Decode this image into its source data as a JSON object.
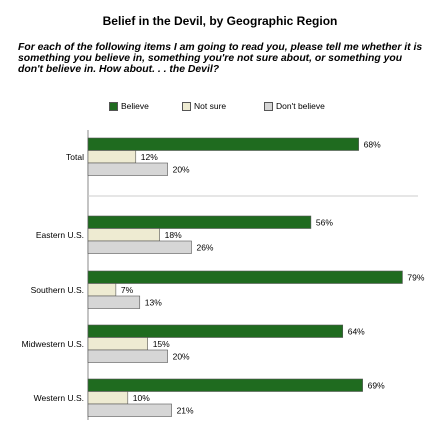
{
  "title": "Belief in the Devil, by  Geographic Region",
  "question": "For each of the following items I am going to read you, please tell me whether it is something you believe in, something you're not sure about, or something you don't believe in. How about. . . the Devil?",
  "legend": [
    {
      "label": "Believe",
      "color": "#1f6b1f"
    },
    {
      "label": "Not sure",
      "color": "#eeebd2"
    },
    {
      "label": "Don't believe",
      "color": "#d6d6d6"
    }
  ],
  "chart_data": {
    "type": "bar",
    "orientation": "horizontal",
    "title": "Belief in the Devil, by  Geographic Region",
    "categories": [
      "Total",
      "Eastern U.S.",
      "Southern U.S.",
      "Midwestern U.S.",
      "Western U.S."
    ],
    "series": [
      {
        "name": "Believe",
        "values": [
          68,
          56,
          79,
          64,
          69
        ],
        "labels": [
          "68%",
          "56%",
          "79%",
          "64%",
          "69%"
        ]
      },
      {
        "name": "Not sure",
        "values": [
          12,
          18,
          7,
          15,
          10
        ],
        "labels": [
          "12%",
          "18%",
          "7%",
          "15%",
          "10%"
        ]
      },
      {
        "name": "Don't believe",
        "values": [
          20,
          26,
          13,
          20,
          21
        ],
        "labels": [
          "20%",
          "26%",
          "13%",
          "20%",
          "21%"
        ]
      }
    ],
    "xlim": [
      0,
      100
    ],
    "grid": false,
    "legend_position": "top"
  }
}
